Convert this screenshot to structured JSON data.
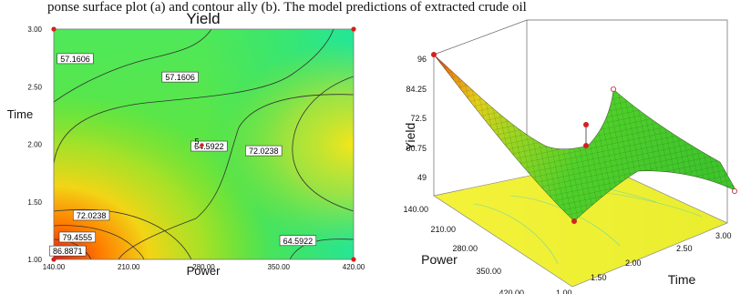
{
  "caption": "ponse surface plot (a) and contour ally (b). The model predictions of extracted crude oil",
  "chart_data": [
    {
      "type": "contour",
      "title": "Yield",
      "xlabel": "Power",
      "ylabel": "Time",
      "xlim": [
        140,
        420
      ],
      "ylim": [
        1.0,
        3.0
      ],
      "x_ticks": [
        "140.00",
        "210.00",
        "280.00",
        "350.00",
        "420.00"
      ],
      "y_ticks": [
        "1.00",
        "1.50",
        "2.00",
        "2.50",
        "3.00"
      ],
      "contour_labels": [
        {
          "text": "57.1606",
          "x": 160,
          "y": 2.74
        },
        {
          "text": "57.1606",
          "x": 258,
          "y": 2.58
        },
        {
          "text": "64.5922",
          "x": 285,
          "y": 1.98
        },
        {
          "text": "72.0238",
          "x": 336,
          "y": 1.94
        },
        {
          "text": "72.0238",
          "x": 175,
          "y": 1.38
        },
        {
          "text": "79.4555",
          "x": 162,
          "y": 1.19
        },
        {
          "text": "86.8871",
          "x": 153,
          "y": 1.07
        },
        {
          "text": "64.5922",
          "x": 368,
          "y": 1.16
        }
      ],
      "center_marker": {
        "x": 280,
        "y": 2.0,
        "label": "5"
      },
      "design_points": [
        {
          "x": 140,
          "y": 1.0
        },
        {
          "x": 140,
          "y": 3.0
        },
        {
          "x": 420,
          "y": 1.0
        },
        {
          "x": 420,
          "y": 3.0
        }
      ],
      "grid": false
    },
    {
      "type": "surface",
      "zlabel": "Yield",
      "xlabel": "Power",
      "ylabel": "Time",
      "zlim": [
        49,
        96
      ],
      "z_ticks": [
        "96",
        "84.25",
        "72.5",
        "60.75",
        "49"
      ],
      "x_ticks": [
        "140.00",
        "210.00",
        "280.00",
        "350.00",
        "420.00"
      ],
      "y_ticks": [
        "1.00",
        "1.50",
        "2.00",
        "2.50",
        "3.00"
      ],
      "design_points": [
        {
          "power": 140,
          "time": 1.0,
          "yield": 96
        },
        {
          "power": 420,
          "time": 1.0,
          "yield": 73
        },
        {
          "power": 140,
          "time": 3.0,
          "yield": 57
        },
        {
          "power": 420,
          "time": 3.0,
          "yield": 71
        },
        {
          "power": 280,
          "time": 2.0,
          "yield": 65
        }
      ]
    }
  ]
}
